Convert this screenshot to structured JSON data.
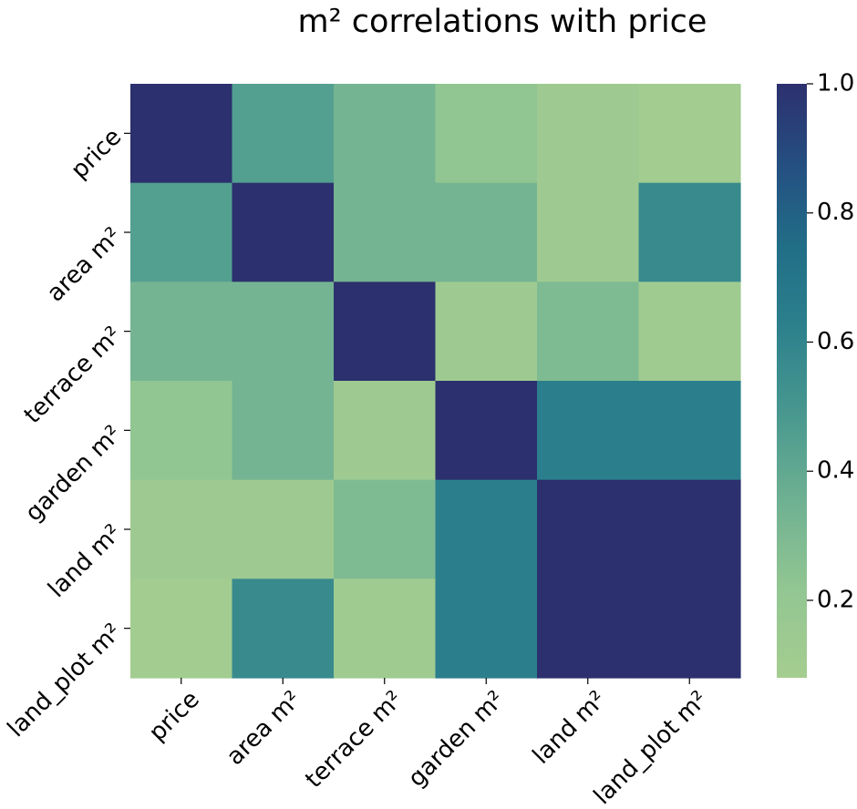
{
  "chart_data": {
    "type": "heatmap",
    "title": "m² correlations with price",
    "row_labels": [
      "price",
      "area m²",
      "terrace m²",
      "garden m²",
      "land m²",
      "land_plot m²"
    ],
    "col_labels": [
      "price",
      "area m²",
      "terrace m²",
      "garden m²",
      "land m²",
      "land_plot m²"
    ],
    "values": [
      [
        1.0,
        0.45,
        0.33,
        0.22,
        0.13,
        0.1
      ],
      [
        0.45,
        1.0,
        0.33,
        0.33,
        0.13,
        0.57
      ],
      [
        0.33,
        0.33,
        1.0,
        0.13,
        0.29,
        0.12
      ],
      [
        0.22,
        0.33,
        0.13,
        1.0,
        0.63,
        0.63
      ],
      [
        0.13,
        0.13,
        0.29,
        0.63,
        1.0,
        1.0
      ],
      [
        0.1,
        0.57,
        0.12,
        0.63,
        1.0,
        1.0
      ]
    ],
    "colorbar": {
      "min": 0.08,
      "max": 1.0,
      "ticks": [
        0.2,
        0.4,
        0.6,
        0.8,
        1.0
      ],
      "tick_labels": [
        "0.2",
        "0.4",
        "0.6",
        "0.8",
        "1.0"
      ],
      "colormap": "crest"
    }
  }
}
